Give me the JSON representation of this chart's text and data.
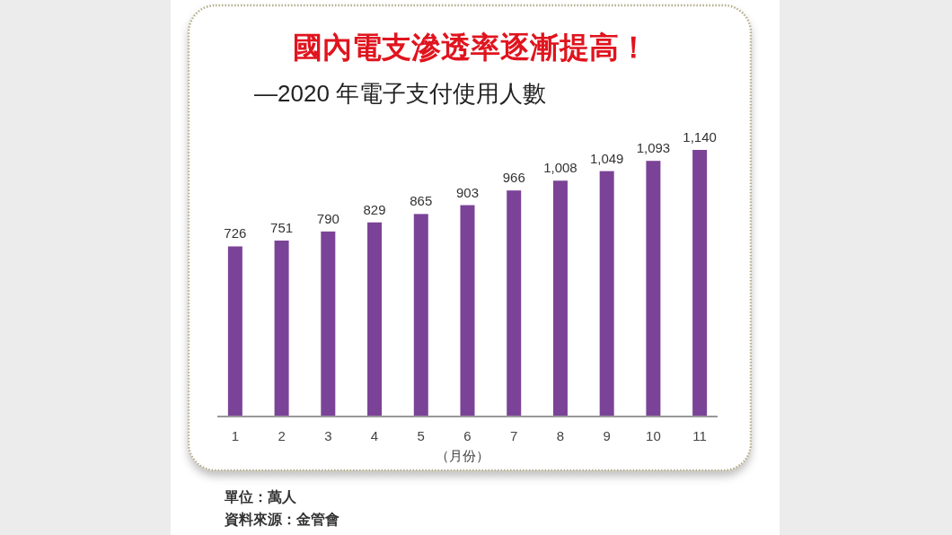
{
  "chart_data": {
    "type": "bar",
    "title": "國內電支滲透率逐漸提高！",
    "subtitle": "—2020 年電子支付使用人數",
    "xlabel": "（月份）",
    "categories": [
      "1",
      "2",
      "3",
      "4",
      "5",
      "6",
      "7",
      "8",
      "9",
      "10",
      "11"
    ],
    "values": [
      726,
      751,
      790,
      829,
      865,
      903,
      966,
      1008,
      1049,
      1093,
      1140
    ],
    "value_labels": [
      "726",
      "751",
      "790",
      "829",
      "865",
      "903",
      "966",
      "1,008",
      "1,049",
      "1,093",
      "1,140"
    ],
    "color": "#7b4397",
    "annotations": [
      "單位：萬人",
      "資料來源：金管會"
    ]
  }
}
